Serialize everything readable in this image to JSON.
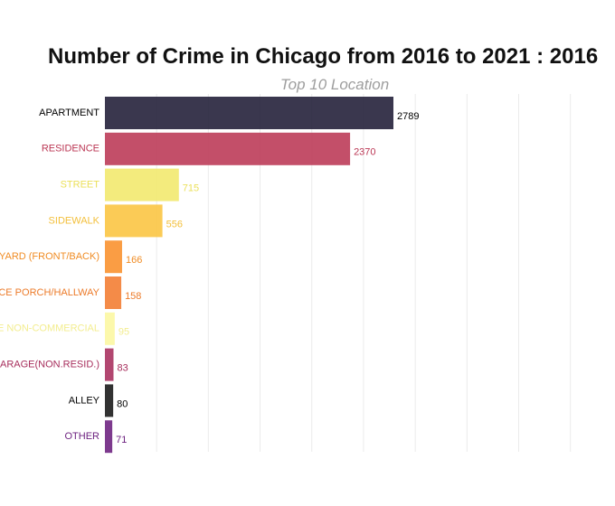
{
  "chart_data": {
    "type": "bar",
    "orientation": "horizontal",
    "title": "Number of Crime in Chicago from 2016 to 2021 : 2016",
    "subtitle": "Top 10 Location",
    "xlabel": "",
    "ylabel": "",
    "xlim": [
      0,
      5000
    ],
    "grid": true,
    "legend": "none",
    "categories": [
      "APARTMENT",
      "RESIDENCE",
      "STREET",
      "SIDEWALK",
      "RESIDENCE-YARD (FRONT/BACK)",
      "RESIDENCE PORCH/HALLWAY",
      "VEHICLE NON-COMMERCIAL",
      "RESIDENCE-GARAGE(NON.RESID.)",
      "ALLEY",
      "OTHER"
    ],
    "values": [
      2789,
      2370,
      715,
      556,
      166,
      158,
      95,
      83,
      80,
      71
    ],
    "bar_colors": [
      "#1f1b35",
      "#bb3754",
      "#f1e86b",
      "#fac43f",
      "#f98f2a",
      "#f37b2f",
      "#fcf79f",
      "#a72e5c",
      "#161616",
      "#6b1f7e"
    ],
    "label_colors": [
      "#000000",
      "#bb3754",
      "#ebe05a",
      "#f3bf3a",
      "#f08c24",
      "#ec7b2a",
      "#f3ed8f",
      "#a72e5c",
      "#000000",
      "#6b1f7e"
    ]
  }
}
